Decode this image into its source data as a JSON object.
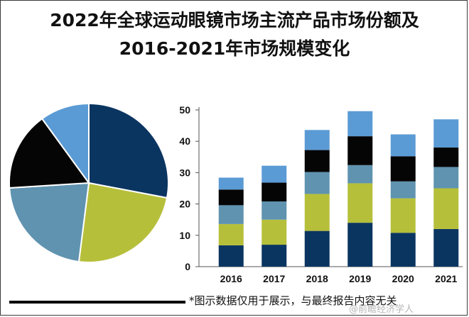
{
  "title_line1": "2022年全球运动眼镜市场主流产品市场份额及",
  "title_line2": "2016-2021年市场规模变化",
  "footnote": "*图示数据仅用于展示，与最终报告内容无关",
  "watermark": "@前瞻经济学人",
  "chart_data": [
    {
      "type": "pie",
      "title": "",
      "slices": [
        {
          "value": 28,
          "color": "#0b3561"
        },
        {
          "value": 24,
          "color": "#b6bf3a"
        },
        {
          "value": 22,
          "color": "#5f93b0"
        },
        {
          "value": 16,
          "color": "#050505"
        },
        {
          "value": 10,
          "color": "#5b9bd5"
        }
      ]
    },
    {
      "type": "bar",
      "stacked": true,
      "title": "",
      "xlabel": "",
      "ylabel": "",
      "categories": [
        "2016",
        "2017",
        "2018",
        "2019",
        "2020",
        "2021"
      ],
      "ylim": [
        0,
        50
      ],
      "yticks": [
        0,
        10,
        20,
        30,
        40,
        50
      ],
      "grid": false,
      "series": [
        {
          "color": "#0b3561",
          "values": [
            6.8,
            7.0,
            11.4,
            14.0,
            10.8,
            12.0
          ]
        },
        {
          "color": "#b6bf3a",
          "values": [
            6.8,
            8.0,
            11.8,
            12.6,
            11.0,
            13.0
          ]
        },
        {
          "color": "#5f93b0",
          "values": [
            6.0,
            5.8,
            7.0,
            5.8,
            5.4,
            6.8
          ]
        },
        {
          "color": "#050505",
          "values": [
            5.0,
            6.0,
            7.0,
            9.2,
            8.0,
            6.2
          ]
        },
        {
          "color": "#5b9bd5",
          "values": [
            3.8,
            5.4,
            6.4,
            8.0,
            7.0,
            9.0
          ]
        }
      ]
    }
  ]
}
